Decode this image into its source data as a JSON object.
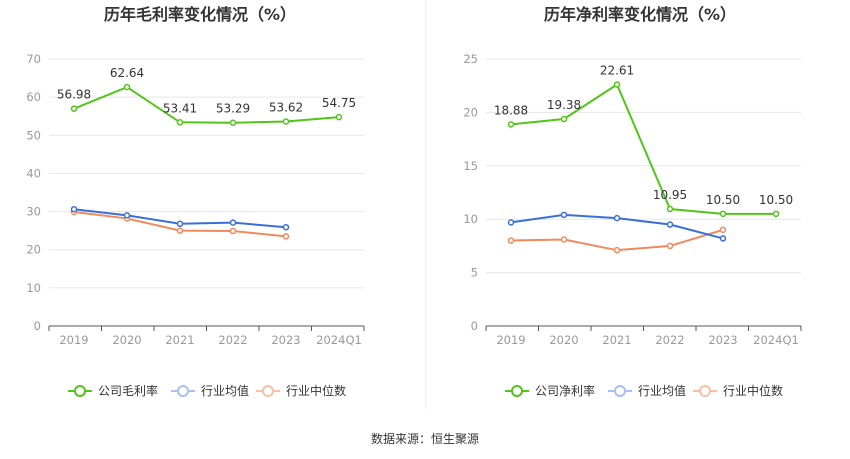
{
  "source_text": "数据来源：恒生聚源",
  "chart_data": [
    {
      "type": "line",
      "title": "历年毛利率变化情况（%）",
      "categories": [
        "2019",
        "2020",
        "2021",
        "2022",
        "2023",
        "2024Q1"
      ],
      "ylim": [
        0,
        70
      ],
      "yticks": [
        0,
        10,
        20,
        30,
        40,
        50,
        60,
        70
      ],
      "grid": true,
      "legend_position": "bottom",
      "series": [
        {
          "name": "公司毛利率",
          "color": "#52c41a",
          "values": [
            56.98,
            62.64,
            53.41,
            53.29,
            53.62,
            54.75
          ],
          "labels": [
            "56.98",
            "62.64",
            "53.41",
            "53.29",
            "53.62",
            "54.75"
          ]
        },
        {
          "name": "行业均值",
          "color": "#3b6fd8",
          "values": [
            30.6,
            29.0,
            26.8,
            27.1,
            25.9,
            null
          ]
        },
        {
          "name": "行业中位数",
          "color": "#f08a5d",
          "values": [
            29.9,
            28.2,
            25.0,
            24.9,
            23.5,
            null
          ]
        }
      ]
    },
    {
      "type": "line",
      "title": "历年净利率变化情况（%）",
      "categories": [
        "2019",
        "2020",
        "2021",
        "2022",
        "2023",
        "2024Q1"
      ],
      "ylim": [
        0,
        25
      ],
      "yticks": [
        0,
        5,
        10,
        15,
        20,
        25
      ],
      "grid": true,
      "legend_position": "bottom",
      "series": [
        {
          "name": "公司净利率",
          "color": "#52c41a",
          "values": [
            18.88,
            19.38,
            22.61,
            10.95,
            10.5,
            10.5
          ],
          "labels": [
            "18.88",
            "19.38",
            "22.61",
            "10.95",
            "10.50",
            "10.50"
          ]
        },
        {
          "name": "行业均值",
          "color": "#3b6fd8",
          "values": [
            9.7,
            10.4,
            10.1,
            9.5,
            8.2,
            null
          ]
        },
        {
          "name": "行业中位数",
          "color": "#f08a5d",
          "values": [
            8.0,
            8.1,
            7.1,
            7.5,
            9.0,
            null
          ]
        }
      ]
    }
  ],
  "legend_colors": {
    "行业均值": "#a8bff0",
    "行业中位数": "#f6c1a8"
  }
}
